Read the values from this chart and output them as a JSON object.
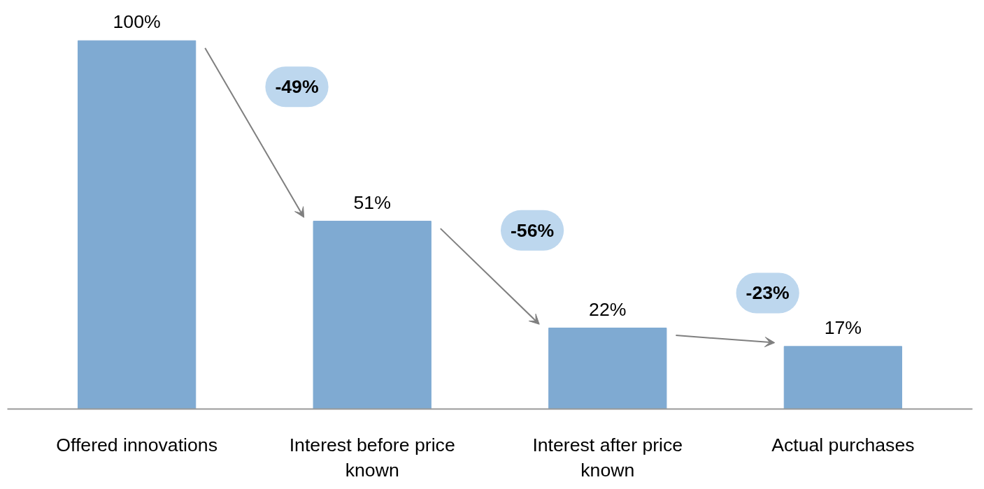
{
  "chart_data": {
    "type": "bar",
    "categories": [
      "Offered innovations",
      "Interest before price known",
      "Interest after price known",
      "Actual purchases"
    ],
    "values": [
      100,
      51,
      22,
      17
    ],
    "color": "#7faad2",
    "data_labels": true,
    "value_labels": [
      "100%",
      "51%",
      "22%",
      "17%"
    ],
    "grid": false,
    "tick_labels": "x",
    "annotations": [
      "-49%",
      "-56%",
      "-23%"
    ]
  }
}
